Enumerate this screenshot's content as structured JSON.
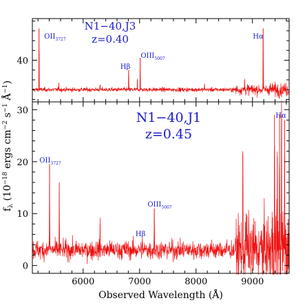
{
  "chart_data": [
    {
      "type": "line",
      "panel": "top",
      "title": "N1−40,J3",
      "subtitle": "z=0.40",
      "x_range": [
        5100,
        9650
      ],
      "y_range": [
        31.5,
        48.5
      ],
      "y_ticks": [
        40
      ],
      "continuum": 34.0,
      "noise_sigma": 0.35,
      "lines": [
        {
          "label": "OII",
          "sub": "3727",
          "x": 5218,
          "peak": 46.5,
          "w": 3
        },
        {
          "label": "Hβ",
          "sub": "",
          "x": 6806,
          "peak": 38.0,
          "w": 3
        },
        {
          "label": "OIII",
          "sub": "5007",
          "x": 7010,
          "peak": 40.5,
          "w": 3
        },
        {
          "label": "Hα",
          "sub": "",
          "x": 9189,
          "peak": 46.5,
          "w": 3
        }
      ],
      "spikes": [
        {
          "x": 5570,
          "peak": 35.4
        },
        {
          "x": 6300,
          "peak": 35.0
        },
        {
          "x": 6960,
          "peak": 36.0
        },
        {
          "x": 8150,
          "peak": 35.2
        },
        {
          "x": 8860,
          "peak": 36.0
        },
        {
          "x": 9320,
          "peak": 35.0
        }
      ]
    },
    {
      "type": "line",
      "panel": "bottom",
      "title": "N1−40,J1",
      "subtitle": "z=0.45",
      "x_range": [
        5100,
        9650
      ],
      "y_range": [
        -1.5,
        31.5
      ],
      "y_ticks": [
        0,
        10,
        20,
        30
      ],
      "continuum": 3.0,
      "noise_sigma": 1.5,
      "lines": [
        {
          "label": "OII",
          "sub": "3727",
          "x": 5405,
          "peak": 19.5,
          "w": 4
        },
        {
          "label": "Hβ",
          "sub": "",
          "x": 7050,
          "peak": 4.5,
          "w": 4
        },
        {
          "label": "OIII",
          "sub": "5007",
          "x": 7260,
          "peak": 11.0,
          "w": 4
        },
        {
          "label": "Hα",
          "sub": "",
          "x": 9515,
          "peak": 29.0,
          "w": 4
        }
      ],
      "spikes": [
        {
          "x": 5577,
          "peak": 16.0
        },
        {
          "x": 6300,
          "peak": 8.0
        },
        {
          "x": 8830,
          "peak": 21.5
        },
        {
          "x": 8890,
          "peak": 10.0
        },
        {
          "x": 9390,
          "peak": 29.0
        },
        {
          "x": 9440,
          "peak": 21.0
        },
        {
          "x": 9480,
          "peak": 29.0
        },
        {
          "x": 9570,
          "peak": 28.0
        }
      ]
    }
  ],
  "axes": {
    "xlabel": "Observed Wavelength (Å)",
    "ylabel": "fλ (10⁻¹⁸ ergs cm⁻² s⁻¹ Å⁻¹)",
    "ylabel_parts": {
      "f": "f",
      "lambda": "λ",
      "rest": " (10",
      "exp": "−18",
      "mid": " ergs cm",
      "e2": "−2",
      "s": " s",
      "e1": "−1",
      "A": " Å",
      "e1b": "−1",
      "close": ")"
    },
    "x_ticks": [
      6000,
      7000,
      8000,
      9000
    ],
    "x_tick_labels": [
      "6000",
      "7000",
      "8000",
      "9000"
    ]
  },
  "colors": {
    "spectrum": "#ee1111",
    "annotation": "#1a1acc"
  }
}
